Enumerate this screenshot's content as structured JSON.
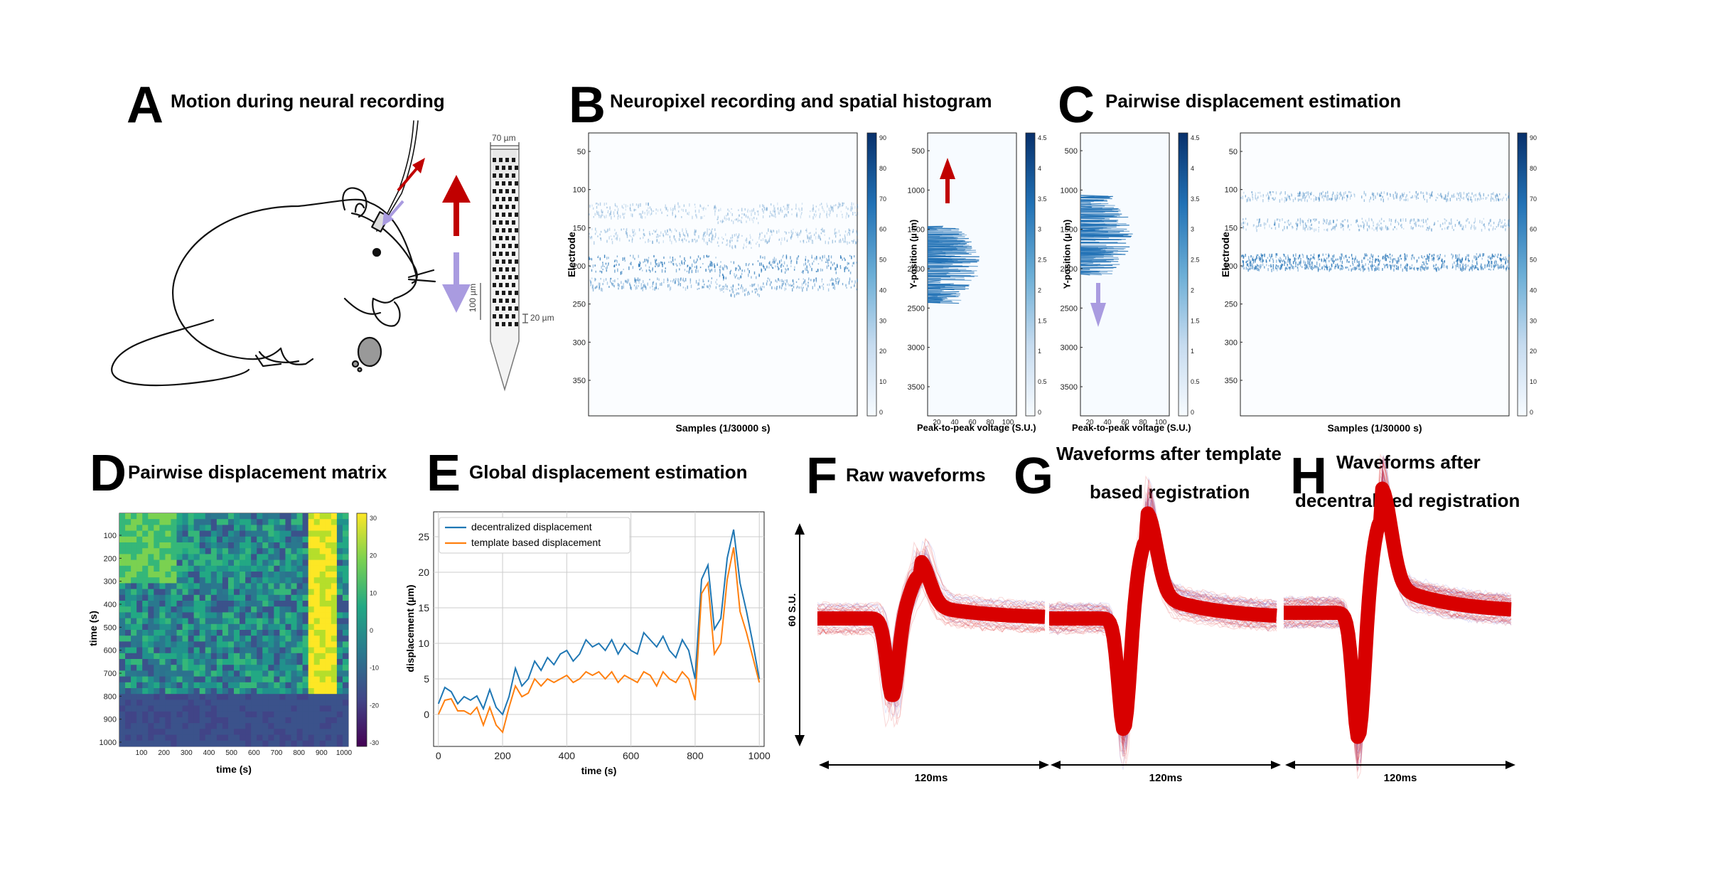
{
  "panels": {
    "A": {
      "letter": "A",
      "title": "Motion during neural recording"
    },
    "B": {
      "letter": "B",
      "title": "Neuropixel recording and spatial histogram"
    },
    "C": {
      "letter": "C",
      "title": "Pairwise displacement estimation"
    },
    "D": {
      "letter": "D",
      "title": "Pairwise displacement matrix"
    },
    "E": {
      "letter": "E",
      "title": "Global displacement estimation"
    },
    "F": {
      "letter": "F",
      "title": "Raw waveforms"
    },
    "G": {
      "letter": "G",
      "title_line1": "Waveforms after template",
      "title_line2": "based registration"
    },
    "H": {
      "letter": "H",
      "title_line1": "Waveforms after",
      "title_line2": "decentralized registration"
    }
  },
  "probe": {
    "width_label": "70 µm",
    "scale_label": "100 µm",
    "pitch_label": "20 µm"
  },
  "raster_B": {
    "ylabel": "Electrode",
    "xlabel": "Samples (1/30000 s)",
    "yticks": [
      "50",
      "100",
      "150",
      "200",
      "250",
      "300",
      "350"
    ],
    "colorbar_ticks": [
      "90",
      "80",
      "70",
      "60",
      "50",
      "40",
      "30",
      "20",
      "10",
      "0"
    ]
  },
  "hist_B": {
    "ylabel": "Y-position (µ m)",
    "xlabel": "Peak-to-peak voltage (S.U.)",
    "yticks": [
      "500",
      "1000",
      "1500",
      "2000",
      "2500",
      "3000",
      "3500"
    ],
    "xticks": [
      "20",
      "40",
      "60",
      "80",
      "100"
    ],
    "colorbar_ticks": [
      "4.5",
      "4",
      "3.5",
      "3",
      "2.5",
      "2",
      "1.5",
      "1",
      "0.5",
      "0"
    ]
  },
  "hist_C": {
    "ylabel": "Y-position (µ m)",
    "xlabel": "Peak-to-peak voltage (S.U.)",
    "yticks": [
      "500",
      "1000",
      "1500",
      "2000",
      "2500",
      "3000",
      "3500"
    ],
    "xticks": [
      "20",
      "40",
      "60",
      "80",
      "100"
    ],
    "colorbar_ticks": [
      "4.5",
      "4",
      "3.5",
      "3",
      "2.5",
      "2",
      "1.5",
      "1",
      "0.5",
      "0"
    ]
  },
  "raster_C": {
    "ylabel": "Electrode",
    "xlabel": "Samples (1/30000 s)",
    "yticks": [
      "50",
      "100",
      "150",
      "200",
      "250",
      "300",
      "350"
    ],
    "colorbar_ticks": [
      "90",
      "80",
      "70",
      "60",
      "50",
      "40",
      "30",
      "20",
      "10",
      "0"
    ]
  },
  "matrix_D": {
    "ylabel": "time (s)",
    "xlabel": "time (s)",
    "yticks": [
      "100",
      "200",
      "300",
      "400",
      "500",
      "600",
      "700",
      "800",
      "900",
      "1000"
    ],
    "xticks": [
      "100",
      "200",
      "300",
      "400",
      "500",
      "600",
      "700",
      "800",
      "900",
      "1000"
    ],
    "colorbar_ticks": [
      "30",
      "20",
      "10",
      "0",
      "-10",
      "-20",
      "-30"
    ]
  },
  "chart_data": {
    "type": "line",
    "title": "Global displacement estimation",
    "xlabel": "time (s)",
    "ylabel": "displacement (µm)",
    "xlim": [
      -15,
      1015
    ],
    "ylim": [
      -4.5,
      28.5
    ],
    "xticks": [
      0,
      200,
      400,
      600,
      800,
      1000
    ],
    "yticks": [
      0,
      5,
      10,
      15,
      20,
      25
    ],
    "grid": true,
    "legend": "top-left",
    "x": [
      0,
      20,
      40,
      60,
      80,
      100,
      120,
      140,
      160,
      180,
      200,
      220,
      240,
      260,
      280,
      300,
      320,
      340,
      360,
      380,
      400,
      420,
      440,
      460,
      480,
      500,
      520,
      540,
      560,
      580,
      600,
      620,
      640,
      660,
      680,
      700,
      720,
      740,
      760,
      780,
      800,
      820,
      840,
      860,
      880,
      900,
      920,
      940,
      960,
      980,
      1000
    ],
    "series": [
      {
        "name": "decentralized displacement",
        "color": "#1f77b4",
        "values": [
          1.5,
          3.8,
          3.2,
          1.5,
          2.5,
          2.0,
          2.6,
          0.8,
          3.5,
          1.0,
          0.0,
          2.5,
          6.5,
          4.0,
          5.0,
          7.5,
          6.2,
          8.0,
          7.0,
          8.5,
          9.0,
          7.5,
          8.5,
          10.5,
          9.5,
          10.0,
          9.0,
          10.5,
          8.5,
          10.0,
          9.0,
          8.5,
          11.5,
          10.5,
          9.5,
          11.0,
          9.0,
          8.0,
          10.5,
          9.0,
          5.0,
          19.0,
          21.0,
          12.0,
          13.5,
          22.0,
          26.0,
          18.5,
          14.5,
          10.0,
          5.0
        ]
      },
      {
        "name": "template based displacement",
        "color": "#ff7f0e",
        "values": [
          0.0,
          2.0,
          2.2,
          0.5,
          0.5,
          0.0,
          1.0,
          -1.5,
          1.0,
          -1.5,
          -2.5,
          1.0,
          4.0,
          2.5,
          3.0,
          5.0,
          4.0,
          5.0,
          4.5,
          5.0,
          5.5,
          4.5,
          5.0,
          6.0,
          5.5,
          6.0,
          5.0,
          6.0,
          4.5,
          5.5,
          5.0,
          4.5,
          6.0,
          5.5,
          4.0,
          6.0,
          5.0,
          4.5,
          6.0,
          5.0,
          2.0,
          17.0,
          18.5,
          8.5,
          10.0,
          19.0,
          23.5,
          14.5,
          11.5,
          8.0,
          4.5
        ]
      }
    ]
  },
  "waveforms": {
    "vertical_scale_label": "60 S.U.",
    "F": {
      "time_label": "120ms"
    },
    "G": {
      "time_label": "120ms"
    },
    "H": {
      "time_label": "120ms"
    }
  }
}
